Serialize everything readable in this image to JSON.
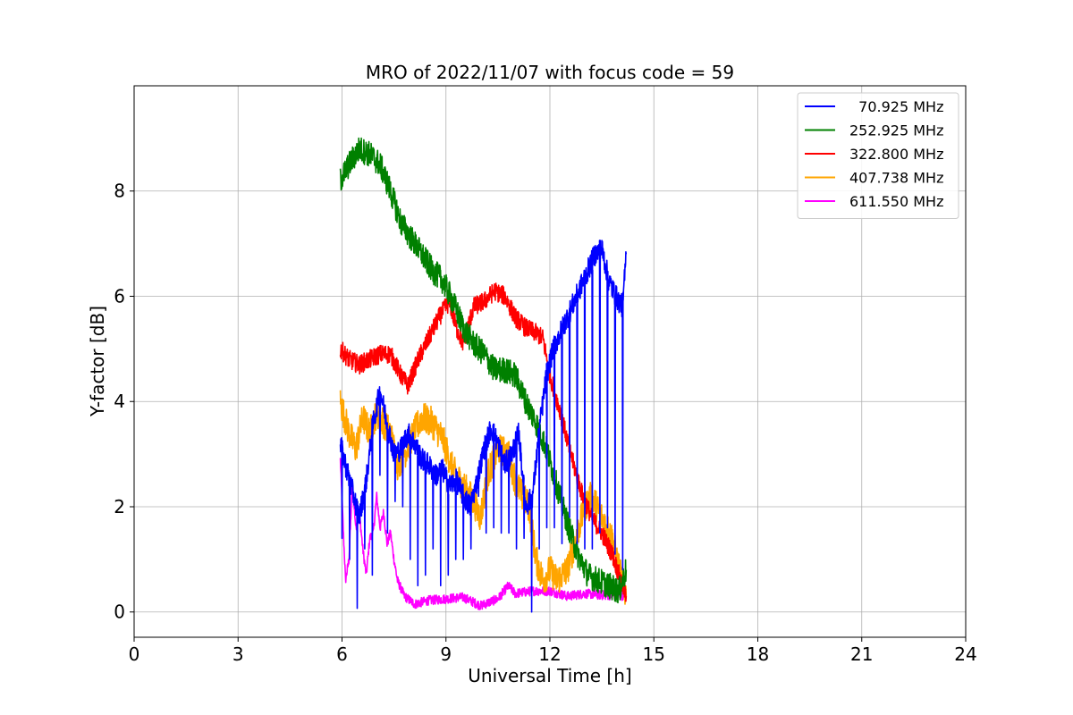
{
  "chart_data": {
    "type": "line",
    "title": "MRO of 2022/11/07 with focus code = 59",
    "xlabel": "Universal Time [h]",
    "ylabel": "Y-factor [dB]",
    "xlim": [
      0,
      24
    ],
    "ylim": [
      -0.48,
      10.0
    ],
    "xticks": [
      0,
      3,
      6,
      9,
      12,
      15,
      18,
      21,
      24
    ],
    "yticks": [
      0,
      2,
      4,
      6,
      8
    ],
    "grid": true,
    "legend_position": "top-right",
    "series": [
      {
        "name": "  70.925 MHz",
        "color": "#0000ff",
        "x": [
          5.95,
          6.1,
          6.3,
          6.5,
          6.7,
          6.9,
          7.1,
          7.3,
          7.5,
          7.7,
          7.9,
          8.1,
          8.3,
          8.5,
          8.7,
          8.9,
          9.1,
          9.3,
          9.5,
          9.7,
          9.9,
          10.1,
          10.3,
          10.5,
          10.7,
          10.9,
          11.1,
          11.3,
          11.5,
          11.7,
          11.9,
          12.1,
          12.3,
          12.5,
          12.7,
          12.9,
          13.1,
          13.3,
          13.5,
          13.7,
          13.9,
          14.1,
          14.2
        ],
        "y": [
          3.2,
          2.8,
          2.3,
          1.8,
          2.5,
          3.6,
          4.2,
          3.6,
          3.0,
          3.1,
          3.4,
          3.2,
          2.9,
          2.8,
          2.6,
          2.7,
          2.4,
          2.5,
          2.2,
          2.0,
          2.5,
          3.1,
          3.5,
          3.2,
          2.8,
          3.0,
          3.4,
          2.0,
          2.2,
          3.5,
          4.5,
          5.0,
          5.3,
          5.6,
          5.9,
          6.2,
          6.5,
          6.8,
          6.9,
          6.3,
          6.0,
          5.8,
          6.8
        ],
        "dip_minima": [
          1.4,
          1.0,
          0.07,
          1.2,
          0.7,
          2.6,
          1.5,
          2.1,
          2.0,
          1.0,
          0.5,
          0.7,
          1.2,
          0.5,
          0.7,
          1.0,
          1.0,
          1.2,
          2.2,
          1.5,
          1.6,
          1.5,
          1.5,
          1.2,
          1.4,
          0.0,
          1.2,
          1.6,
          1.6,
          1.3,
          1.8,
          1.3,
          1.2,
          1.2,
          1.5,
          1.6,
          1.1,
          0.8
        ]
      },
      {
        "name": "252.925 MHz",
        "color": "#008000",
        "x": [
          5.95,
          6.2,
          6.5,
          6.8,
          7.1,
          7.4,
          7.7,
          8.0,
          8.3,
          8.6,
          8.9,
          9.2,
          9.5,
          9.8,
          10.1,
          10.4,
          10.7,
          11.0,
          11.3,
          11.6,
          11.9,
          12.2,
          12.5,
          12.8,
          13.1,
          13.4,
          13.7,
          14.0,
          14.2
        ],
        "y": [
          8.2,
          8.5,
          8.8,
          8.7,
          8.5,
          8.0,
          7.4,
          7.1,
          6.8,
          6.5,
          6.3,
          5.9,
          5.4,
          5.1,
          4.9,
          4.6,
          4.6,
          4.5,
          4.0,
          3.6,
          3.1,
          2.4,
          1.7,
          1.1,
          0.7,
          0.6,
          0.5,
          0.4,
          0.8
        ]
      },
      {
        "name": "322.800 MHz",
        "color": "#ff0000",
        "x": [
          5.95,
          6.2,
          6.5,
          6.8,
          7.1,
          7.4,
          7.7,
          7.9,
          8.2,
          8.5,
          8.8,
          9.1,
          9.3,
          9.5,
          9.8,
          10.1,
          10.4,
          10.7,
          11.0,
          11.3,
          11.6,
          11.8,
          12.0,
          12.3,
          12.6,
          12.9,
          13.2,
          13.5,
          13.8,
          14.0,
          14.2
        ],
        "y": [
          5.0,
          4.8,
          4.7,
          4.8,
          4.9,
          4.9,
          4.5,
          4.3,
          4.8,
          5.2,
          5.6,
          5.9,
          5.4,
          5.1,
          5.8,
          5.9,
          6.1,
          6.0,
          5.6,
          5.4,
          5.3,
          5.2,
          4.5,
          3.8,
          3.0,
          2.3,
          1.8,
          1.5,
          1.1,
          0.7,
          0.3
        ]
      },
      {
        "name": "407.738 MHz",
        "color": "#ffa500",
        "x": [
          5.95,
          6.2,
          6.4,
          6.6,
          6.8,
          7.0,
          7.2,
          7.4,
          7.6,
          7.8,
          8.0,
          8.3,
          8.6,
          8.9,
          9.2,
          9.5,
          9.8,
          10.0,
          10.2,
          10.5,
          10.8,
          11.0,
          11.2,
          11.4,
          11.6,
          11.8,
          12.0,
          12.2,
          12.5,
          12.8,
          13.0,
          13.2,
          13.5,
          13.8,
          14.0,
          14.2
        ],
        "y": [
          4.0,
          3.4,
          3.1,
          3.7,
          3.4,
          3.8,
          3.6,
          3.4,
          2.8,
          3.0,
          3.3,
          3.7,
          3.6,
          3.3,
          2.7,
          2.4,
          2.1,
          1.8,
          2.6,
          3.1,
          3.0,
          2.5,
          2.2,
          2.0,
          1.0,
          0.6,
          0.8,
          0.6,
          0.8,
          1.5,
          2.0,
          2.2,
          1.8,
          1.4,
          0.8,
          0.3
        ]
      },
      {
        "name": "611.550 MHz",
        "color": "#ff00ff",
        "x": [
          5.95,
          6.1,
          6.2,
          6.3,
          6.4,
          6.5,
          6.6,
          6.7,
          6.8,
          6.9,
          7.0,
          7.1,
          7.2,
          7.3,
          7.4,
          7.5,
          7.6,
          7.8,
          8.1,
          8.5,
          9.0,
          9.5,
          10.0,
          10.5,
          10.8,
          11.0,
          11.5,
          12.0,
          12.5,
          13.0,
          13.5,
          14.0,
          14.2
        ],
        "y": [
          2.9,
          0.6,
          1.0,
          2.4,
          1.6,
          1.9,
          1.2,
          0.7,
          1.4,
          1.5,
          2.2,
          1.6,
          1.9,
          1.3,
          1.5,
          1.0,
          0.6,
          0.3,
          0.15,
          0.22,
          0.25,
          0.28,
          0.12,
          0.25,
          0.5,
          0.35,
          0.4,
          0.4,
          0.3,
          0.35,
          0.32,
          0.32,
          0.3
        ]
      }
    ]
  }
}
